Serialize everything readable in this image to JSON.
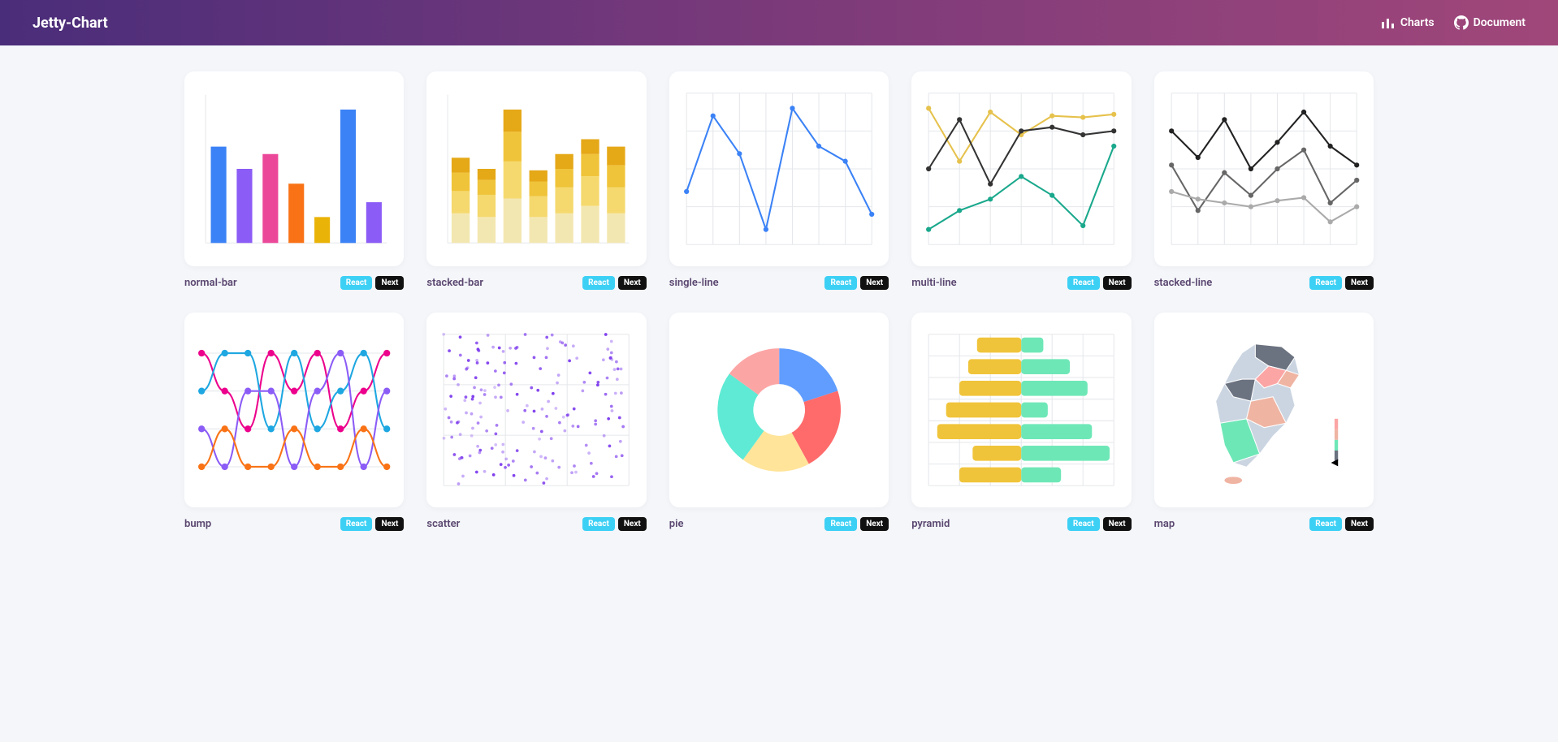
{
  "header": {
    "brand": "Jetty-Chart",
    "nav": [
      {
        "label": "Charts",
        "icon": "bar"
      },
      {
        "label": "Document",
        "icon": "github"
      }
    ]
  },
  "tags": {
    "react": "React",
    "next": "Next"
  },
  "grid": {
    "gridColor": "#e5e7eb",
    "bg": "#ffffff"
  },
  "charts": [
    {
      "id": "normal-bar",
      "title": "normal-bar",
      "type": "bar",
      "values": [
        130,
        100,
        120,
        80,
        35,
        180,
        55
      ],
      "colors": [
        "#3b82f6",
        "#8b5cf6",
        "#ec4899",
        "#f97316",
        "#eab308",
        "#3b82f6",
        "#8b5cf6"
      ],
      "ylim": [
        0,
        200
      ]
    },
    {
      "id": "stacked-bar",
      "title": "stacked-bar",
      "type": "stacked-bar",
      "categories": 7,
      "stacks": [
        [
          40,
          35,
          60,
          35,
          40,
          50,
          40
        ],
        [
          30,
          30,
          50,
          28,
          35,
          40,
          35
        ],
        [
          25,
          20,
          40,
          20,
          25,
          30,
          30
        ],
        [
          20,
          15,
          30,
          15,
          20,
          20,
          25
        ]
      ],
      "stackColors": [
        "#f3e7b1",
        "#f5d96e",
        "#f0c43a",
        "#e5a817"
      ],
      "ylim": [
        0,
        200
      ]
    },
    {
      "id": "single-line",
      "title": "single-line",
      "type": "line",
      "series": [
        {
          "color": "#3b82f6",
          "marker": true,
          "points": [
            [
              0,
              70
            ],
            [
              1,
              170
            ],
            [
              2,
              120
            ],
            [
              3,
              20
            ],
            [
              4,
              180
            ],
            [
              5,
              130
            ],
            [
              6,
              110
            ],
            [
              7,
              40
            ]
          ]
        }
      ],
      "ylim": [
        0,
        200
      ]
    },
    {
      "id": "multi-line",
      "title": "multi-line",
      "type": "line",
      "series": [
        {
          "color": "#e6c24d",
          "marker": true,
          "points": [
            [
              0,
              180
            ],
            [
              1,
              110
            ],
            [
              2,
              175
            ],
            [
              3,
              145
            ],
            [
              4,
              170
            ],
            [
              5,
              168
            ],
            [
              6,
              172
            ]
          ]
        },
        {
          "color": "#333333",
          "marker": true,
          "points": [
            [
              0,
              100
            ],
            [
              1,
              165
            ],
            [
              2,
              80
            ],
            [
              3,
              150
            ],
            [
              4,
              155
            ],
            [
              5,
              145
            ],
            [
              6,
              150
            ]
          ]
        },
        {
          "color": "#1aa88c",
          "marker": true,
          "points": [
            [
              0,
              20
            ],
            [
              1,
              45
            ],
            [
              2,
              60
            ],
            [
              3,
              90
            ],
            [
              4,
              65
            ],
            [
              5,
              25
            ],
            [
              6,
              130
            ]
          ]
        }
      ],
      "ylim": [
        0,
        200
      ]
    },
    {
      "id": "stacked-line",
      "title": "stacked-line",
      "type": "line",
      "series": [
        {
          "color": "#222",
          "marker": true,
          "points": [
            [
              0,
              150
            ],
            [
              1,
              115
            ],
            [
              2,
              165
            ],
            [
              3,
              100
            ],
            [
              4,
              135
            ],
            [
              5,
              175
            ],
            [
              6,
              130
            ],
            [
              7,
              105
            ]
          ]
        },
        {
          "color": "#666",
          "marker": true,
          "points": [
            [
              0,
              105
            ],
            [
              1,
              45
            ],
            [
              2,
              95
            ],
            [
              3,
              65
            ],
            [
              4,
              100
            ],
            [
              5,
              125
            ],
            [
              6,
              55
            ],
            [
              7,
              85
            ]
          ]
        },
        {
          "color": "#aaa",
          "marker": true,
          "points": [
            [
              0,
              70
            ],
            [
              1,
              60
            ],
            [
              2,
              55
            ],
            [
              3,
              50
            ],
            [
              4,
              58
            ],
            [
              5,
              62
            ],
            [
              6,
              30
            ],
            [
              7,
              50
            ]
          ]
        }
      ],
      "ylim": [
        0,
        200
      ]
    },
    {
      "id": "bump",
      "title": "bump",
      "type": "bump",
      "colors": [
        "#ec008c",
        "#1ea7e1",
        "#8b5cf6",
        "#f97316"
      ],
      "ranks": [
        [
          1,
          2,
          3,
          1,
          2,
          1,
          3,
          2,
          1
        ],
        [
          2,
          1,
          1,
          3,
          1,
          3,
          2,
          1,
          3
        ],
        [
          3,
          4,
          2,
          2,
          4,
          2,
          1,
          4,
          2
        ],
        [
          4,
          3,
          4,
          4,
          3,
          4,
          4,
          3,
          4
        ]
      ],
      "steps": 9
    },
    {
      "id": "scatter",
      "title": "scatter",
      "type": "scatter",
      "color": "#7c3aed",
      "count": 180,
      "xlim": [
        0,
        100
      ],
      "ylim": [
        0,
        100
      ]
    },
    {
      "id": "pie",
      "title": "pie",
      "type": "pie",
      "slices": [
        {
          "value": 20,
          "color": "#609dff"
        },
        {
          "value": 22,
          "color": "#ff6b6b"
        },
        {
          "value": 18,
          "color": "#ffe49a"
        },
        {
          "value": 25,
          "color": "#5eead4"
        },
        {
          "value": 15,
          "color": "#fca5a5"
        }
      ],
      "innerRadius": 0.42
    },
    {
      "id": "pyramid",
      "title": "pyramid",
      "type": "pyramid",
      "leftColor": "#f0c43a",
      "rightColor": "#6ee7b7",
      "rows": [
        {
          "l": 50,
          "r": 25
        },
        {
          "l": 60,
          "r": 55
        },
        {
          "l": 70,
          "r": 75
        },
        {
          "l": 85,
          "r": 30
        },
        {
          "l": 95,
          "r": 80
        },
        {
          "l": 55,
          "r": 100
        },
        {
          "l": 70,
          "r": 45
        }
      ],
      "max": 100
    },
    {
      "id": "map",
      "title": "map",
      "type": "map",
      "region": "korea",
      "colors": [
        "#6b7280",
        "#f0b4a3",
        "#6ee7b7",
        "#cbd5e1",
        "#fca5a5",
        "#93c5fd"
      ]
    }
  ]
}
